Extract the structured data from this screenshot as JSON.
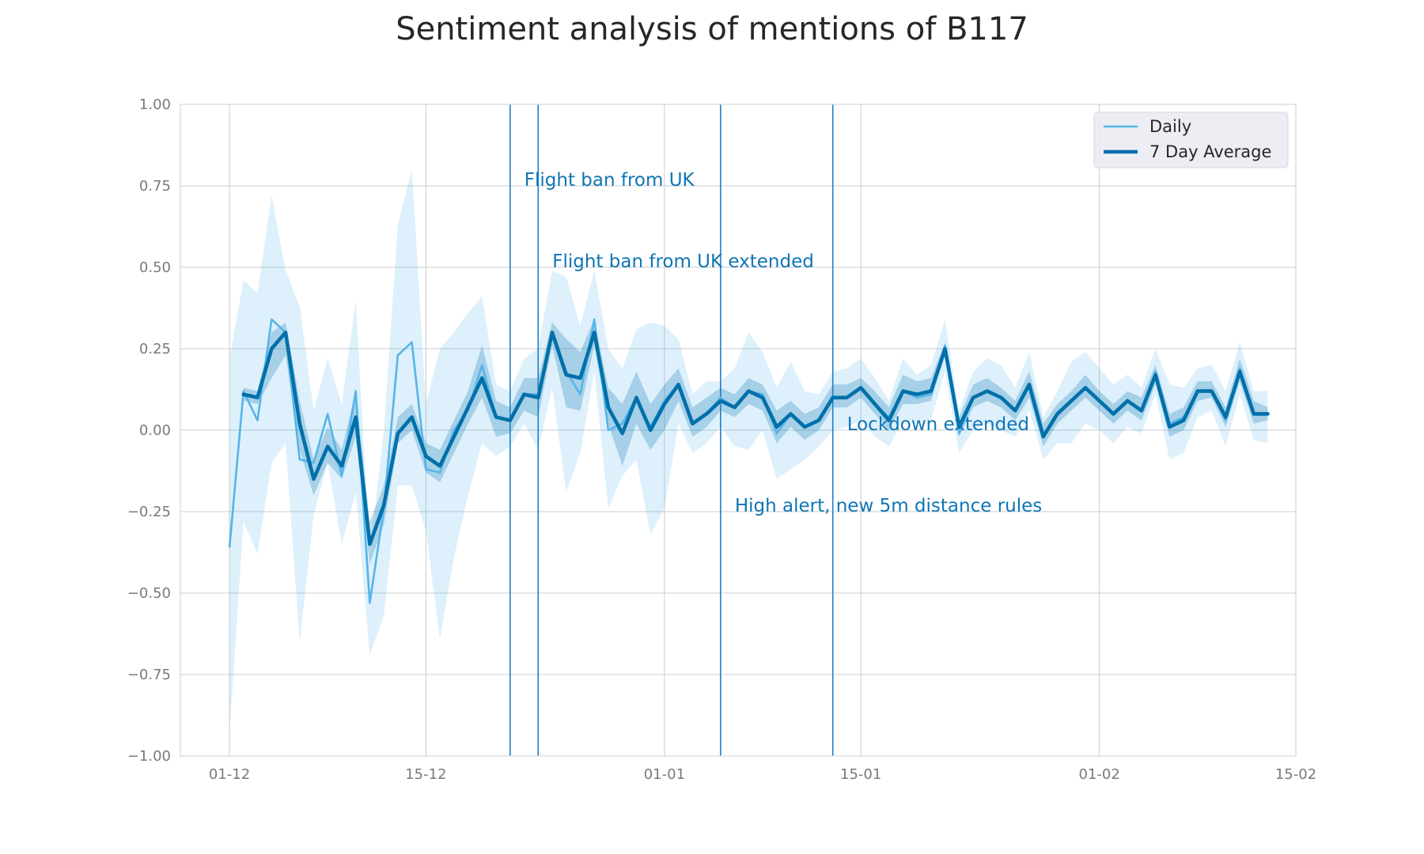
{
  "chart_data": {
    "type": "line",
    "title": "Sentiment analysis of mentions of B117",
    "xlabel": "",
    "ylabel": "",
    "ylim": [
      -1.0,
      1.0
    ],
    "xlim_days": [
      -3.5,
      76
    ],
    "x_origin": "2020-12-01",
    "x_ticks": [
      {
        "day": 0,
        "label": "01-12"
      },
      {
        "day": 14,
        "label": "15-12"
      },
      {
        "day": 31,
        "label": "01-01"
      },
      {
        "day": 45,
        "label": "15-01"
      },
      {
        "day": 62,
        "label": "01-02"
      },
      {
        "day": 76,
        "label": "15-02"
      }
    ],
    "y_ticks": [
      {
        "value": 1.0,
        "label": "1.00"
      },
      {
        "value": 0.75,
        "label": "0.75"
      },
      {
        "value": 0.5,
        "label": "0.50"
      },
      {
        "value": 0.25,
        "label": "0.25"
      },
      {
        "value": 0.0,
        "label": "0.00"
      },
      {
        "value": -0.25,
        "label": "−0.25"
      },
      {
        "value": -0.5,
        "label": "−0.50"
      },
      {
        "value": -0.75,
        "label": "−0.75"
      },
      {
        "value": -1.0,
        "label": "−1.00"
      }
    ],
    "grid": true,
    "legend_position": "top-right",
    "series": [
      {
        "name": "Daily",
        "color": "#56b4e9",
        "x_start": 0,
        "values": [
          -0.36,
          0.12,
          0.03,
          0.34,
          0.3,
          -0.09,
          -0.1,
          0.05,
          -0.14,
          0.12,
          -0.53,
          -0.24,
          0.23,
          0.27,
          -0.12,
          -0.13,
          0.0,
          0.06,
          0.2,
          0.04,
          0.03,
          0.11,
          0.11,
          0.3,
          0.18,
          0.11,
          0.34,
          0.0,
          0.02,
          0.1,
          0.01,
          0.09,
          0.14,
          0.02,
          0.05,
          0.1,
          0.07,
          0.12,
          0.11,
          -0.01,
          0.05,
          0.01,
          0.03,
          0.1,
          0.1,
          0.13,
          0.08,
          0.04,
          0.12,
          0.1,
          0.11,
          0.26,
          -0.01,
          0.1,
          0.12,
          0.1,
          0.06,
          0.14,
          -0.02,
          0.05,
          0.09,
          0.13,
          0.09,
          0.05,
          0.09,
          0.06,
          0.18,
          0.02,
          0.04,
          0.12,
          0.12,
          0.03,
          0.19,
          0.05,
          0.05
        ],
        "ci_low": [
          -0.93,
          -0.28,
          -0.38,
          -0.1,
          -0.04,
          -0.65,
          -0.26,
          -0.1,
          -0.35,
          -0.19,
          -0.69,
          -0.57,
          -0.17,
          -0.17,
          -0.31,
          -0.64,
          -0.39,
          -0.2,
          -0.04,
          -0.08,
          -0.05,
          0.02,
          -0.06,
          0.13,
          -0.19,
          -0.07,
          0.18,
          -0.24,
          -0.14,
          -0.09,
          -0.32,
          -0.24,
          0.02,
          -0.07,
          -0.04,
          0.01,
          -0.05,
          -0.06,
          0.0,
          -0.15,
          -0.12,
          -0.09,
          -0.05,
          0.0,
          0.01,
          0.03,
          -0.02,
          -0.05,
          0.03,
          0.02,
          0.03,
          0.18,
          -0.07,
          0.0,
          0.02,
          0.0,
          -0.02,
          0.06,
          -0.09,
          -0.04,
          -0.04,
          0.02,
          0.0,
          -0.04,
          0.01,
          -0.01,
          0.11,
          -0.09,
          -0.07,
          0.04,
          0.06,
          -0.05,
          0.11,
          -0.03,
          -0.04
        ],
        "ci_high": [
          0.22,
          0.46,
          0.42,
          0.72,
          0.49,
          0.38,
          0.06,
          0.22,
          0.08,
          0.4,
          -0.38,
          0.0,
          0.63,
          0.8,
          0.08,
          0.25,
          0.3,
          0.36,
          0.41,
          0.14,
          0.12,
          0.22,
          0.25,
          0.49,
          0.47,
          0.32,
          0.49,
          0.25,
          0.19,
          0.31,
          0.33,
          0.32,
          0.28,
          0.11,
          0.15,
          0.15,
          0.19,
          0.3,
          0.24,
          0.13,
          0.21,
          0.12,
          0.11,
          0.18,
          0.19,
          0.22,
          0.16,
          0.09,
          0.22,
          0.17,
          0.2,
          0.34,
          0.06,
          0.18,
          0.22,
          0.2,
          0.13,
          0.24,
          0.04,
          0.12,
          0.21,
          0.24,
          0.19,
          0.14,
          0.17,
          0.13,
          0.25,
          0.14,
          0.13,
          0.19,
          0.2,
          0.12,
          0.27,
          0.12,
          0.12
        ]
      },
      {
        "name": "7 Day Average",
        "color": "#0070aa",
        "x_start": 1,
        "values": [
          0.11,
          0.1,
          0.25,
          0.3,
          0.02,
          -0.15,
          -0.05,
          -0.11,
          0.04,
          -0.35,
          -0.23,
          -0.01,
          0.04,
          -0.08,
          -0.11,
          -0.02,
          0.07,
          0.16,
          0.04,
          0.03,
          0.11,
          0.1,
          0.3,
          0.17,
          0.16,
          0.3,
          0.07,
          -0.01,
          0.1,
          0.0,
          0.08,
          0.14,
          0.02,
          0.05,
          0.09,
          0.07,
          0.12,
          0.1,
          0.01,
          0.05,
          0.01,
          0.03,
          0.1,
          0.1,
          0.13,
          0.08,
          0.03,
          0.12,
          0.11,
          0.12,
          0.25,
          0.01,
          0.1,
          0.12,
          0.1,
          0.06,
          0.14,
          -0.02,
          0.05,
          0.09,
          0.13,
          0.09,
          0.05,
          0.09,
          0.06,
          0.17,
          0.01,
          0.03,
          0.12,
          0.12,
          0.04,
          0.18,
          0.05,
          0.05
        ],
        "ci_low": [
          0.09,
          0.08,
          0.16,
          0.23,
          -0.06,
          -0.2,
          -0.1,
          -0.15,
          -0.02,
          -0.41,
          -0.29,
          -0.04,
          0.0,
          -0.13,
          -0.16,
          -0.07,
          0.02,
          0.1,
          -0.02,
          -0.01,
          0.06,
          0.04,
          0.26,
          0.07,
          0.06,
          0.26,
          0.02,
          -0.11,
          0.02,
          -0.06,
          0.0,
          0.09,
          -0.02,
          0.01,
          0.06,
          0.04,
          0.08,
          0.06,
          -0.04,
          0.01,
          -0.03,
          0.0,
          0.07,
          0.07,
          0.1,
          0.05,
          0.0,
          0.08,
          0.08,
          0.09,
          0.23,
          -0.02,
          0.07,
          0.09,
          0.07,
          0.03,
          0.1,
          -0.05,
          0.02,
          0.06,
          0.1,
          0.06,
          0.02,
          0.06,
          0.03,
          0.14,
          -0.02,
          0.0,
          0.09,
          0.1,
          0.01,
          0.15,
          0.02,
          0.03
        ],
        "ci_high": [
          0.13,
          0.12,
          0.3,
          0.33,
          0.09,
          -0.09,
          0.01,
          -0.06,
          0.12,
          -0.28,
          -0.17,
          0.04,
          0.08,
          -0.04,
          -0.06,
          0.03,
          0.12,
          0.26,
          0.09,
          0.07,
          0.16,
          0.16,
          0.33,
          0.28,
          0.24,
          0.34,
          0.13,
          0.08,
          0.18,
          0.08,
          0.14,
          0.19,
          0.07,
          0.1,
          0.13,
          0.11,
          0.16,
          0.14,
          0.06,
          0.09,
          0.05,
          0.07,
          0.14,
          0.14,
          0.16,
          0.12,
          0.07,
          0.17,
          0.15,
          0.16,
          0.27,
          0.04,
          0.14,
          0.16,
          0.13,
          0.09,
          0.18,
          0.02,
          0.08,
          0.12,
          0.17,
          0.12,
          0.08,
          0.12,
          0.1,
          0.2,
          0.05,
          0.07,
          0.15,
          0.15,
          0.07,
          0.22,
          0.09,
          0.07
        ]
      }
    ],
    "events": [
      {
        "day": 20,
        "label": "Flight ban from UK",
        "label_y": 0.77
      },
      {
        "day": 22,
        "label": "Flight ban from UK extended",
        "label_y": 0.52
      },
      {
        "day": 35,
        "label": "High alert, new 5m distance rules",
        "label_y": -0.23
      },
      {
        "day": 43,
        "label": "Lockdown extended",
        "label_y": 0.02
      }
    ]
  },
  "colors": {
    "daily": "#56b4e9",
    "average": "#0070aa",
    "event_line": "#1f7ec4",
    "annotation_text": "#0f75b5",
    "grid": "#cccccc",
    "legend_bg": "#eaeaf2"
  }
}
